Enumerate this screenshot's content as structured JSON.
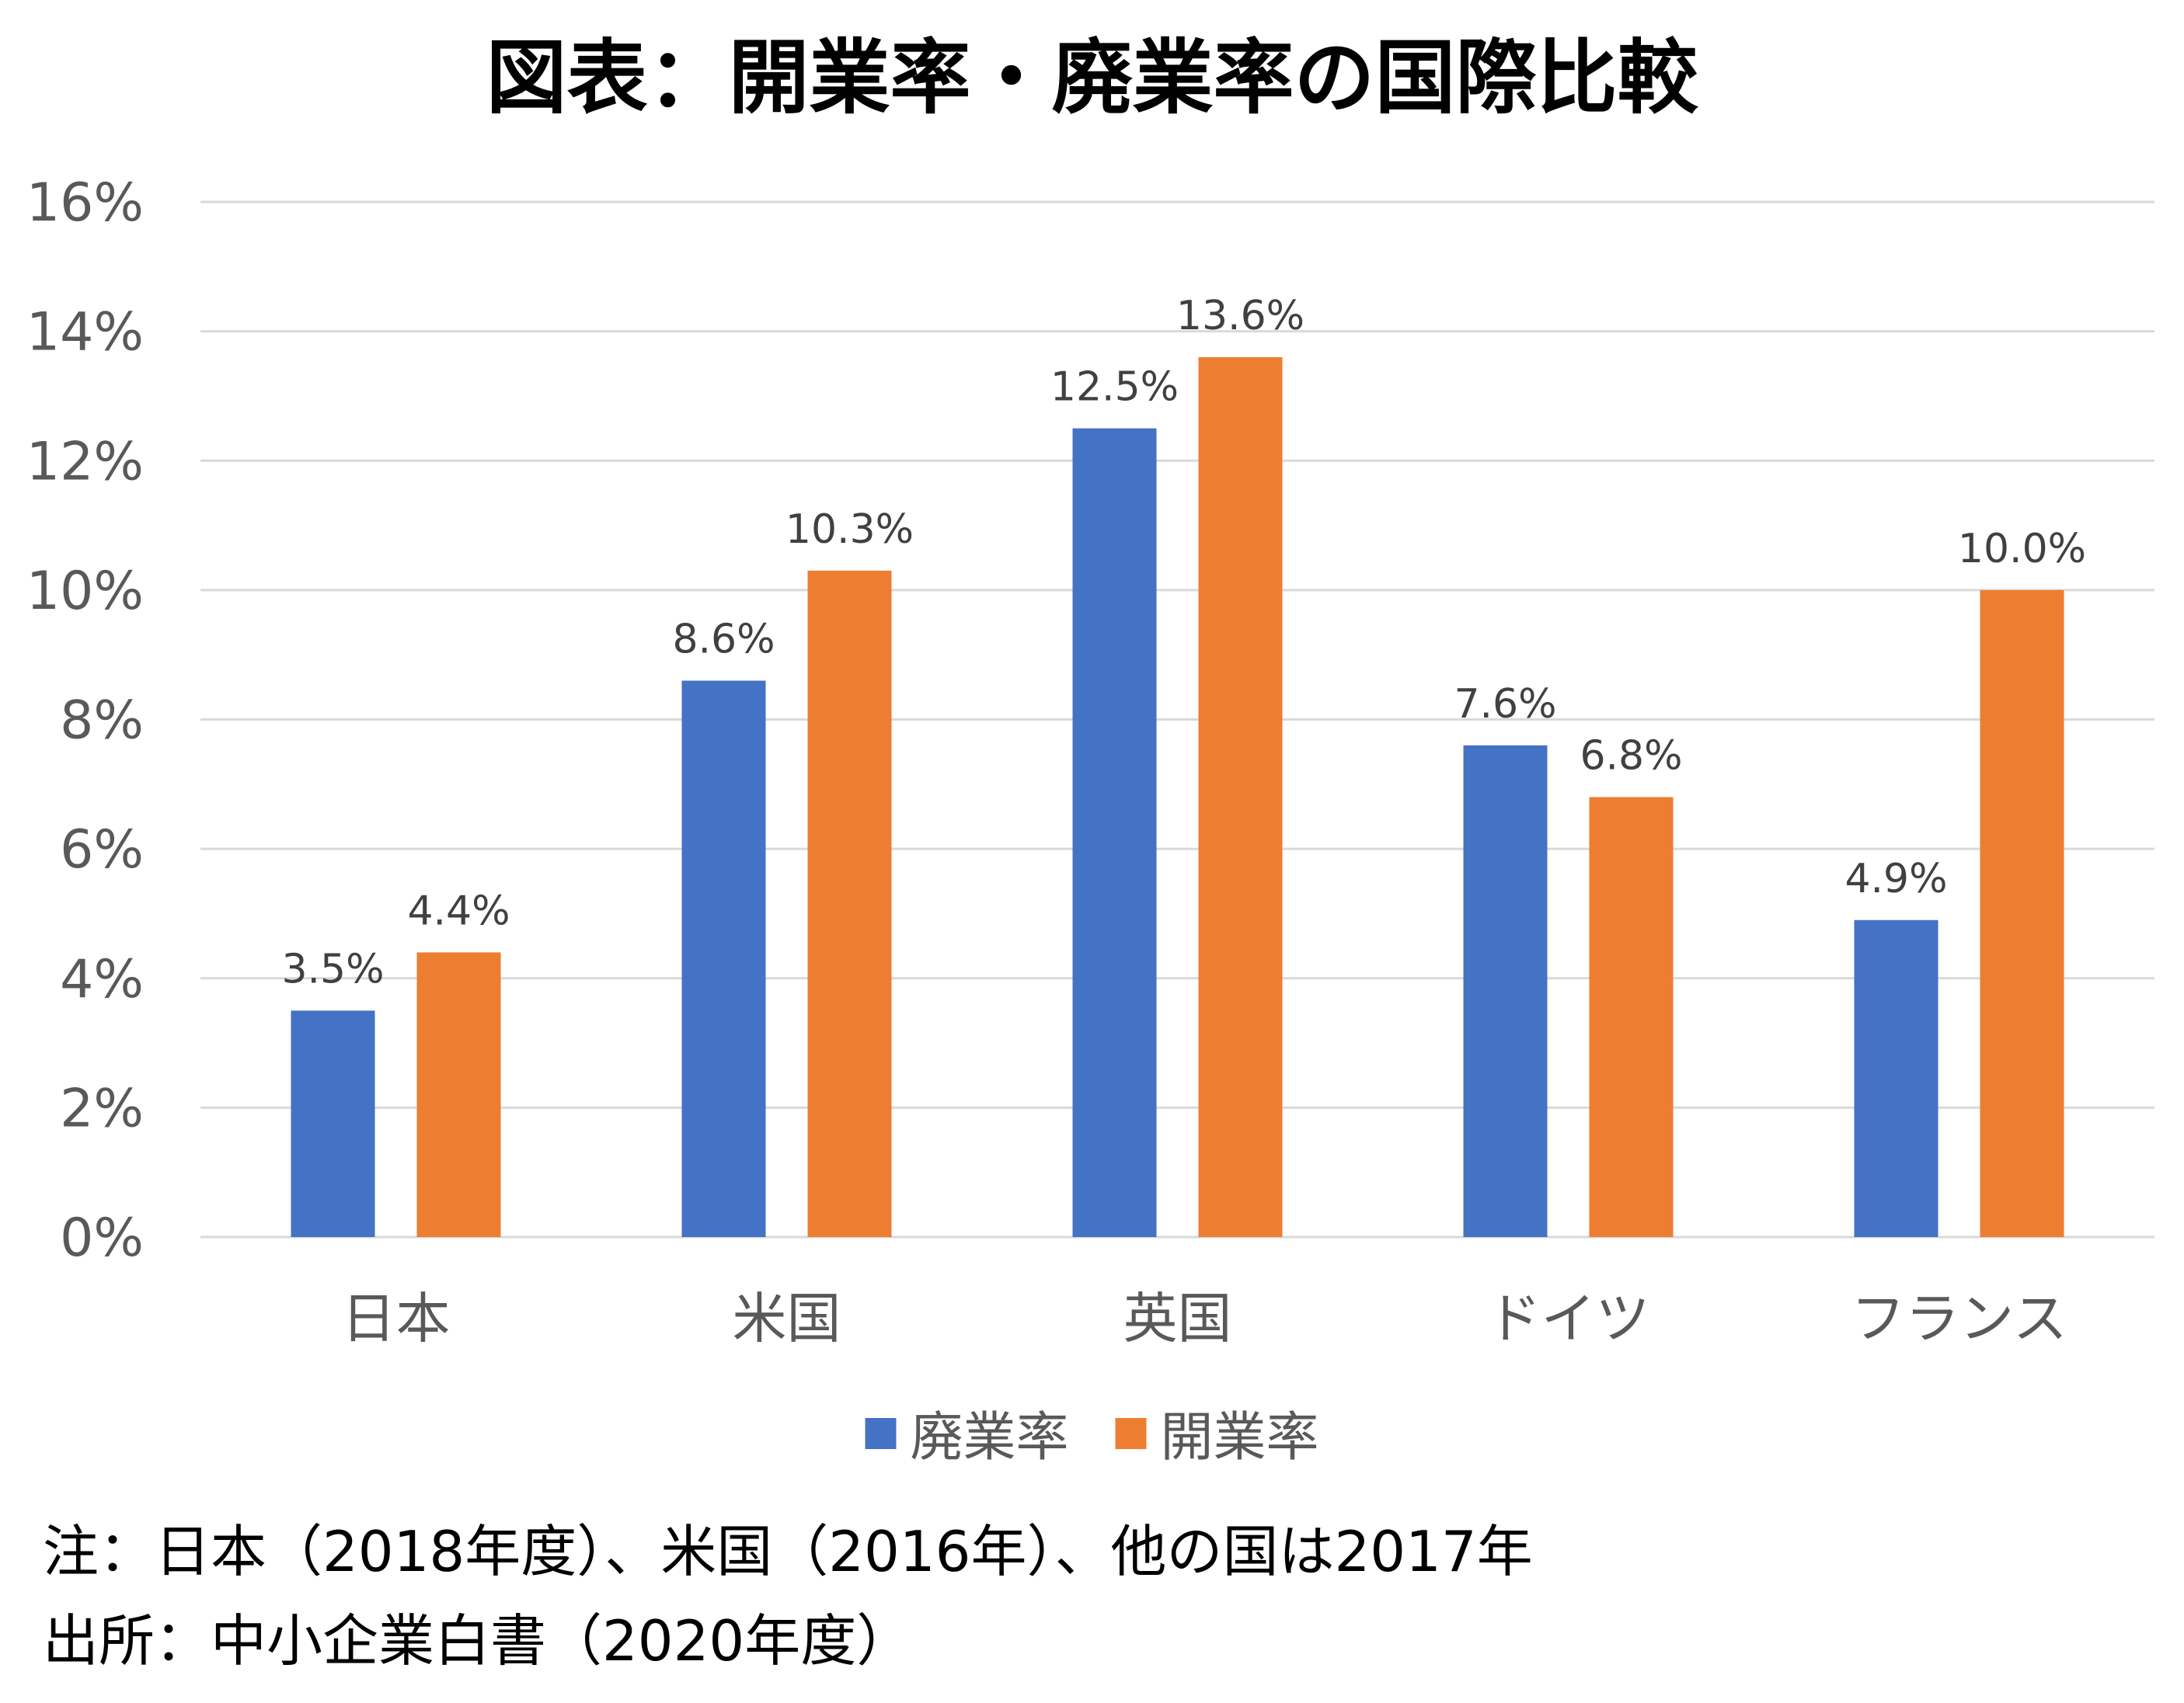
{
  "chart_data": {
    "type": "bar",
    "title": "図表：開業率・廃業率の国際比較",
    "categories": [
      "日本",
      "米国",
      "英国",
      "ドイツ",
      "フランス"
    ],
    "series": [
      {
        "name": "廃業率",
        "values": [
          3.5,
          8.6,
          12.5,
          7.6,
          4.9
        ],
        "labels": [
          "3.5%",
          "8.6%",
          "12.5%",
          "7.6%",
          "4.9%"
        ],
        "color": "#4472C4"
      },
      {
        "name": "開業率",
        "values": [
          4.4,
          10.3,
          13.6,
          6.8,
          10.0
        ],
        "labels": [
          "4.4%",
          "10.3%",
          "13.6%",
          "6.8%",
          "10.0%"
        ],
        "color": "#ED7D31"
      }
    ],
    "ylim": [
      0,
      16
    ],
    "yticks": [
      "0%",
      "2%",
      "4%",
      "6%",
      "8%",
      "10%",
      "12%",
      "14%",
      "16%"
    ],
    "ytick_values": [
      0,
      2,
      4,
      6,
      8,
      10,
      12,
      14,
      16
    ],
    "grid": true,
    "legend_position": "bottom",
    "xlabel": "",
    "ylabel": ""
  },
  "colors": {
    "grid": "#D9D9D9",
    "axis_text": "#595959",
    "data_label": "#404040"
  },
  "notes": {
    "note": "注：日本（2018年度）、米国（2016年）、他の国は2017年",
    "source": "出所：中小企業白書（2020年度）"
  }
}
